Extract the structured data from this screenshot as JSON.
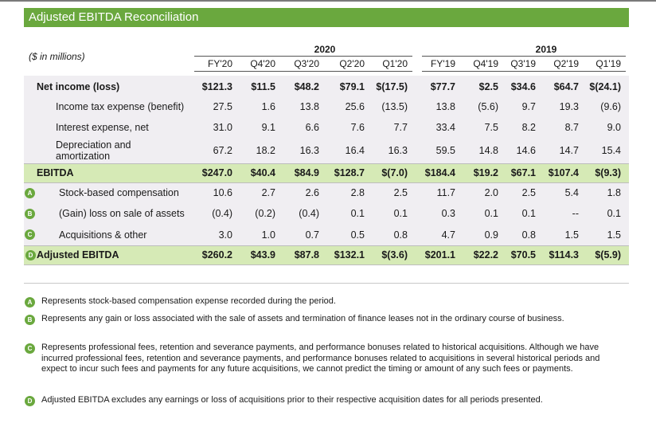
{
  "title": "Adjusted EBITDA Reconciliation",
  "units": "($ in millions)",
  "years": {
    "y2020": "2020",
    "y2019": "2019"
  },
  "columns": [
    "FY'20",
    "Q4'20",
    "Q3'20",
    "Q2'20",
    "Q1'20",
    "FY'19",
    "Q4'19",
    "Q3'19",
    "Q2'19",
    "Q1'19"
  ],
  "rows": [
    {
      "label": "Net income (loss)",
      "values": [
        "$121.3",
        "$11.5",
        "$48.2",
        "$79.1",
        "$(17.5)",
        "$77.7",
        "$2.5",
        "$34.6",
        "$64.7",
        "$(24.1)"
      ]
    },
    {
      "label": "Income tax expense (benefit)",
      "values": [
        "27.5",
        "1.6",
        "13.8",
        "25.6",
        "(13.5)",
        "13.8",
        "(5.6)",
        "9.7",
        "19.3",
        "(9.6)"
      ]
    },
    {
      "label": "Interest expense, net",
      "values": [
        "31.0",
        "9.1",
        "6.6",
        "7.6",
        "7.7",
        "33.4",
        "7.5",
        "8.2",
        "8.7",
        "9.0"
      ]
    },
    {
      "label": "Depreciation and amortization",
      "values": [
        "67.2",
        "18.2",
        "16.3",
        "16.4",
        "16.3",
        "59.5",
        "14.8",
        "14.6",
        "14.7",
        "15.4"
      ]
    },
    {
      "label": "EBITDA",
      "values": [
        "$247.0",
        "$40.4",
        "$84.9",
        "$128.7",
        "$(7.0)",
        "$184.4",
        "$19.2",
        "$67.1",
        "$107.4",
        "$(9.3)"
      ]
    },
    {
      "label": "Stock-based compensation",
      "marker": "A",
      "values": [
        "10.6",
        "2.7",
        "2.6",
        "2.8",
        "2.5",
        "11.7",
        "2.0",
        "2.5",
        "5.4",
        "1.8"
      ]
    },
    {
      "label": "(Gain) loss on sale of assets",
      "marker": "B",
      "values": [
        "(0.4)",
        "(0.2)",
        "(0.4)",
        "0.1",
        "0.1",
        "0.3",
        "0.1",
        "0.1",
        "--",
        "0.1"
      ]
    },
    {
      "label": "Acquisitions & other",
      "marker": "C",
      "values": [
        "3.0",
        "1.0",
        "0.7",
        "0.5",
        "0.8",
        "4.7",
        "0.9",
        "0.8",
        "1.5",
        "1.5"
      ]
    },
    {
      "label": "Adjusted EBITDA",
      "marker": "D",
      "values": [
        "$260.2",
        "$43.9",
        "$87.8",
        "$132.1",
        "$(3.6)",
        "$201.1",
        "$22.2",
        "$70.5",
        "$114.3",
        "$(5.9)"
      ]
    }
  ],
  "notes": [
    {
      "marker": "A",
      "text": "Represents stock-based compensation expense recorded during the period."
    },
    {
      "marker": "B",
      "text": "Represents any gain or loss associated with the sale of assets and termination of finance leases not in the ordinary course of business."
    },
    {
      "marker": "C",
      "text": "Represents professional fees, retention and severance payments, and performance bonuses related to historical acquisitions. Although we have incurred professional fees, retention and severance payments, and performance bonuses related to acquisitions in several historical periods and expect to incur such fees and payments for any future acquisitions, we cannot predict the timing or amount of any such fees or payments."
    },
    {
      "marker": "D",
      "text": "Adjusted EBITDA excludes any earnings or loss of acquisitions prior to their respective acquisition dates for all periods presented."
    }
  ],
  "colors": {
    "accent": "#6aa83e",
    "band_green": "#d6eab6",
    "band_light": "#f0eef2"
  }
}
